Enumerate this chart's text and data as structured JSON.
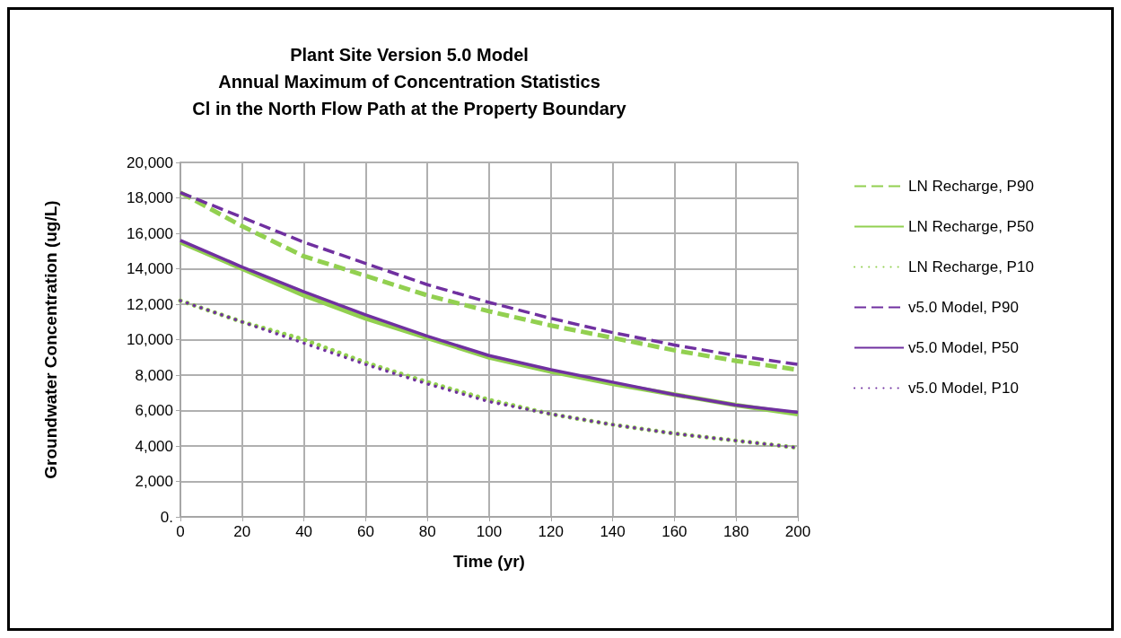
{
  "chart_data": {
    "type": "line",
    "title": "Plant Site Version 5.0 Model\nAnnual Maximum of Concentration Statistics\nCl in the North Flow Path at the Property Boundary",
    "xlabel": "Time (yr)",
    "ylabel": "Groundwater Concentration (ug/L)",
    "x": [
      0,
      20,
      40,
      60,
      80,
      100,
      120,
      140,
      160,
      180,
      200
    ],
    "xlim": [
      0,
      200
    ],
    "xticks": [
      0,
      20,
      40,
      60,
      80,
      100,
      120,
      140,
      160,
      180,
      200
    ],
    "ylim": [
      0,
      20000
    ],
    "yticks": [
      {
        "value": 0,
        "label": "0."
      },
      {
        "value": 2000,
        "label": "2,000"
      },
      {
        "value": 4000,
        "label": "4,000"
      },
      {
        "value": 6000,
        "label": "6,000"
      },
      {
        "value": 8000,
        "label": "8,000"
      },
      {
        "value": 10000,
        "label": "10,000"
      },
      {
        "value": 12000,
        "label": "12,000"
      },
      {
        "value": 14000,
        "label": "14,000"
      },
      {
        "value": 16000,
        "label": "16,000"
      },
      {
        "value": 18000,
        "label": "18,000"
      },
      {
        "value": 20000,
        "label": "20,000"
      }
    ],
    "grid": true,
    "legend": "right",
    "marker": "none",
    "series": [
      {
        "name": "LN Recharge, P90",
        "color": "#92d050",
        "line_style": "dashed",
        "values": [
          18300,
          16400,
          14700,
          13600,
          12500,
          11600,
          10800,
          10100,
          9400,
          8800,
          8300
        ]
      },
      {
        "name": "LN Recharge, P50",
        "color": "#92d050",
        "line_style": "solid",
        "values": [
          15500,
          14000,
          12500,
          11200,
          10100,
          9000,
          8200,
          7500,
          6900,
          6300,
          5800
        ]
      },
      {
        "name": "LN Recharge, P10",
        "color": "#92d050",
        "line_style": "dotted",
        "values": [
          12200,
          11000,
          10000,
          8700,
          7600,
          6600,
          5800,
          5200,
          4700,
          4300,
          3900
        ]
      },
      {
        "name": "v5.0 Model, P90",
        "color": "#7030a0",
        "line_style": "dashed",
        "values": [
          18300,
          16900,
          15500,
          14300,
          13100,
          12100,
          11200,
          10400,
          9700,
          9100,
          8600
        ]
      },
      {
        "name": "v5.0 Model, P50",
        "color": "#7030a0",
        "line_style": "solid",
        "values": [
          15600,
          14100,
          12700,
          11400,
          10200,
          9100,
          8300,
          7600,
          6900,
          6300,
          5900
        ]
      },
      {
        "name": "v5.0 Model, P10",
        "color": "#7030a0",
        "line_style": "dotted",
        "values": [
          12200,
          11000,
          9800,
          8600,
          7500,
          6500,
          5800,
          5200,
          4700,
          4300,
          3900
        ]
      }
    ]
  }
}
